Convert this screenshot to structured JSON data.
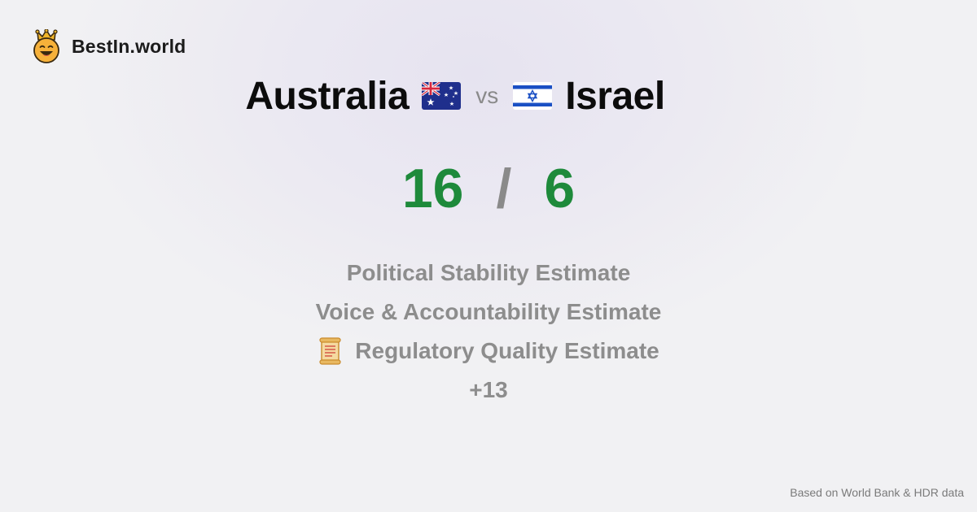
{
  "brand": {
    "name": "BestIn.world",
    "logo_icon": "crowned-smiley-icon"
  },
  "comparison": {
    "left_country": "Australia",
    "left_flag": "australia-flag-icon",
    "vs_label": "vs",
    "right_country": "Israel",
    "right_flag": "israel-flag-icon"
  },
  "score": {
    "left": "16",
    "separator": "/",
    "right": "6"
  },
  "metrics": [
    {
      "label": "Political Stability Estimate"
    },
    {
      "label": "Voice & Accountability Estimate"
    },
    {
      "label": "Regulatory Quality Estimate",
      "icon": "scroll-icon"
    }
  ],
  "more_label": "+13",
  "footer": {
    "source": "Based on World Bank & HDR data"
  },
  "colors": {
    "score_green": "#1e8a3b",
    "muted_gray": "#8d8d8d",
    "background": "#f1f1f3"
  }
}
